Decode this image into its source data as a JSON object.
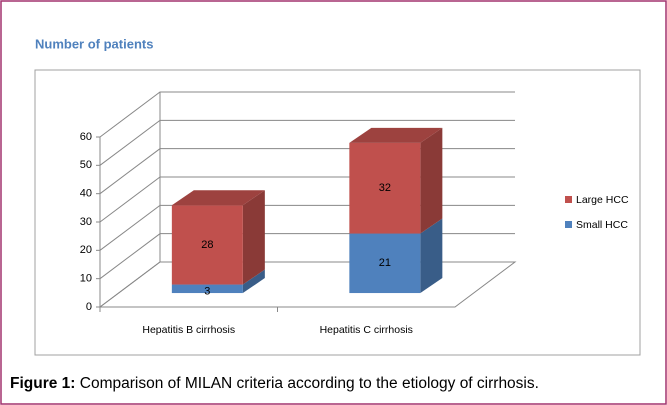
{
  "chart_data": {
    "type": "bar",
    "stacked": true,
    "title": "Number of patients",
    "categories": [
      "Hepatitis B cirrhosis",
      "Hepatitis C cirrhosis"
    ],
    "series": [
      {
        "name": "Small HCC",
        "color": "#4f81bd",
        "values": [
          3,
          21
        ]
      },
      {
        "name": "Large HCC",
        "color": "#c0504d",
        "values": [
          28,
          32
        ]
      }
    ],
    "ylim": [
      0,
      60
    ],
    "yticks": [
      0,
      10,
      20,
      30,
      40,
      50,
      60
    ],
    "grid": true,
    "legend": "right"
  },
  "caption": {
    "label": "Figure 1:",
    "text": "Comparison of MILAN criteria according to the etiology of cirrhosis."
  }
}
